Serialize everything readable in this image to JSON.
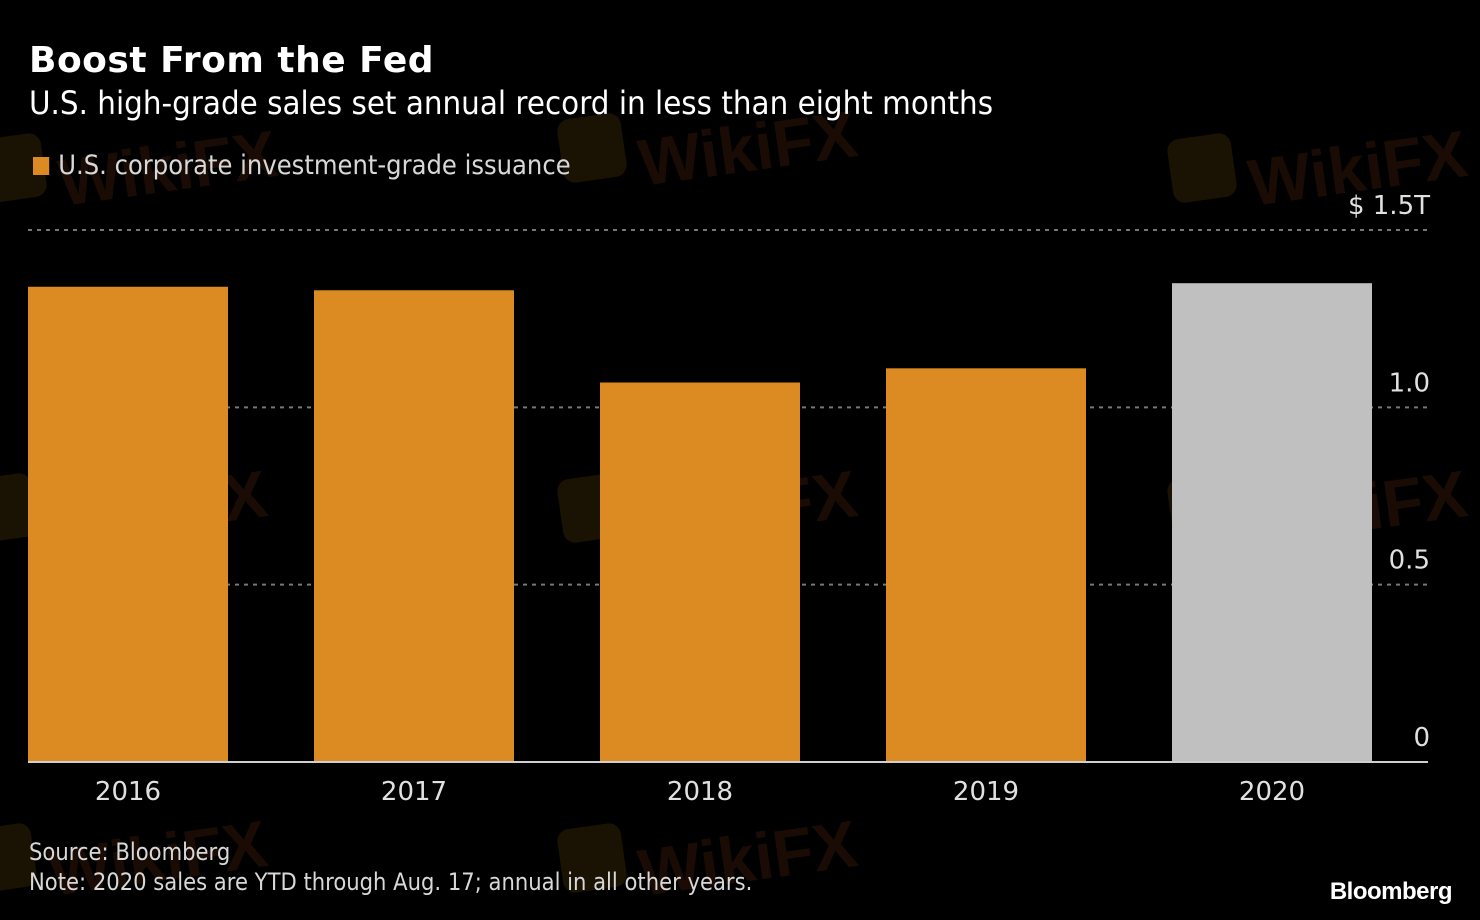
{
  "header": {
    "title": "Boost From the Fed",
    "subtitle": "U.S. high-grade sales set annual record in less than eight months"
  },
  "legend": {
    "label": "U.S. corporate investment-grade issuance",
    "color": "#dc8a22"
  },
  "footer": {
    "source": "Source: Bloomberg",
    "note": "Note: 2020 sales are YTD through Aug. 17; annual in all other years.",
    "brand": "Bloomberg"
  },
  "watermark": {
    "text": "WikiFX"
  },
  "chart_data": {
    "type": "bar",
    "title": "Boost From the Fed",
    "subtitle": "U.S. high-grade sales set annual record in less than eight months",
    "xlabel": "",
    "ylabel": "",
    "categories": [
      "2016",
      "2017",
      "2018",
      "2019",
      "2020"
    ],
    "series": [
      {
        "name": "U.S. corporate investment-grade issuance",
        "values": [
          1.34,
          1.33,
          1.07,
          1.11,
          1.35
        ],
        "unit": "$ trillion"
      }
    ],
    "bar_colors": [
      "#dc8a22",
      "#dc8a22",
      "#dc8a22",
      "#dc8a22",
      "#c0c0c0"
    ],
    "highlight": {
      "category": "2020",
      "color": "#c0c0c0",
      "meaning": "YTD through Aug. 17"
    },
    "ylim": [
      0,
      1.5
    ],
    "yticks": [
      0,
      0.5,
      1.0,
      1.5
    ],
    "ytick_labels": [
      "0",
      "0.5",
      "1.0",
      "$ 1.5T"
    ],
    "y_axis_side": "right",
    "grid": true,
    "grid_style": "dotted",
    "legend_position": "top-left"
  }
}
